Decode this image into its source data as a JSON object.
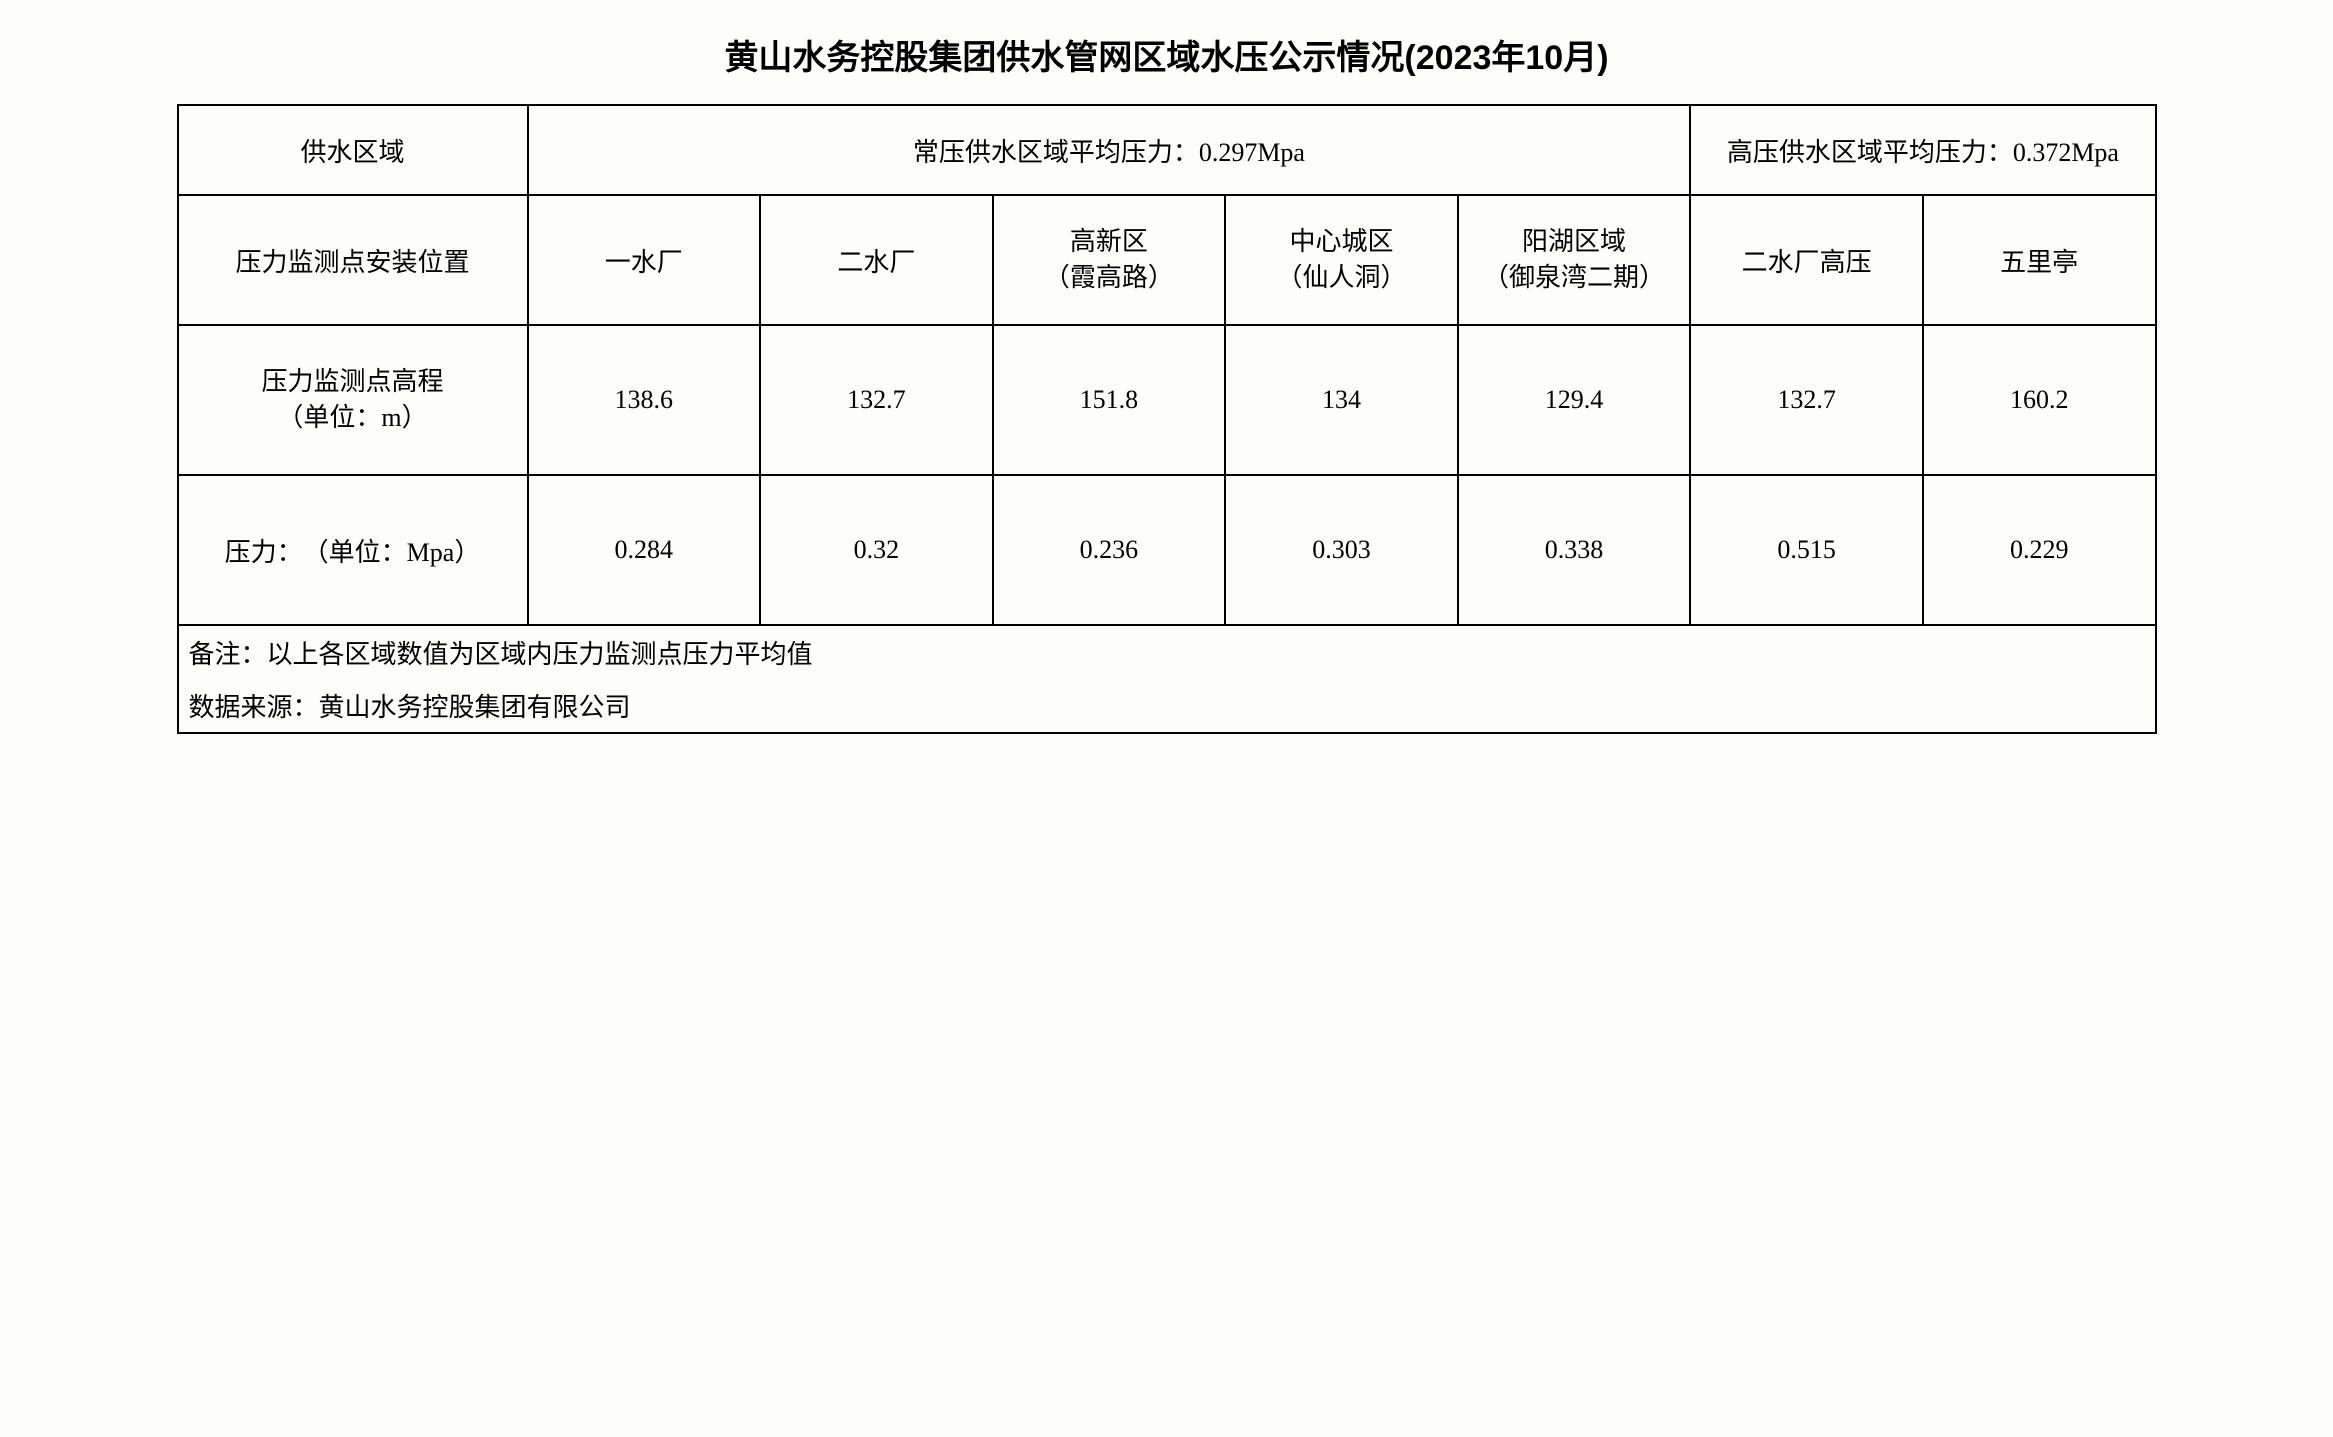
{
  "title": "黄山水务控股集团供水管网区域水压公示情况(2023年10月)",
  "table": {
    "row1": {
      "label": "供水区域",
      "normal_pressure": "常压供水区域平均压力：0.297Mpa",
      "high_pressure": "高压供水区域平均压力：0.372Mpa"
    },
    "row2": {
      "label": "压力监测点安装位置",
      "locations": {
        "loc1": "一水厂",
        "loc2": "二水厂",
        "loc3_line1": "高新区",
        "loc3_line2": "（霞高路）",
        "loc4_line1": "中心城区",
        "loc4_line2": "（仙人洞）",
        "loc5_line1": "阳湖区域",
        "loc5_line2": "（御泉湾二期）",
        "loc6": "二水厂高压",
        "loc7": "五里亭"
      }
    },
    "row3": {
      "label_line1": "压力监测点高程",
      "label_line2": "（单位：m）",
      "values": {
        "v1": "138.6",
        "v2": "132.7",
        "v3": "151.8",
        "v4": "134",
        "v5": "129.4",
        "v6": "132.7",
        "v7": "160.2"
      }
    },
    "row4": {
      "label": "压力：　（单位：Mpa）",
      "values": {
        "v1": "0.284",
        "v2": "0.32",
        "v3": "0.236",
        "v4": "0.303",
        "v5": "0.338",
        "v6": "0.515",
        "v7": "0.229"
      }
    },
    "note": "备注：以上各区域数值为区域内压力监测点压力平均值",
    "source": "数据来源：黄山水务控股集团有限公司"
  }
}
